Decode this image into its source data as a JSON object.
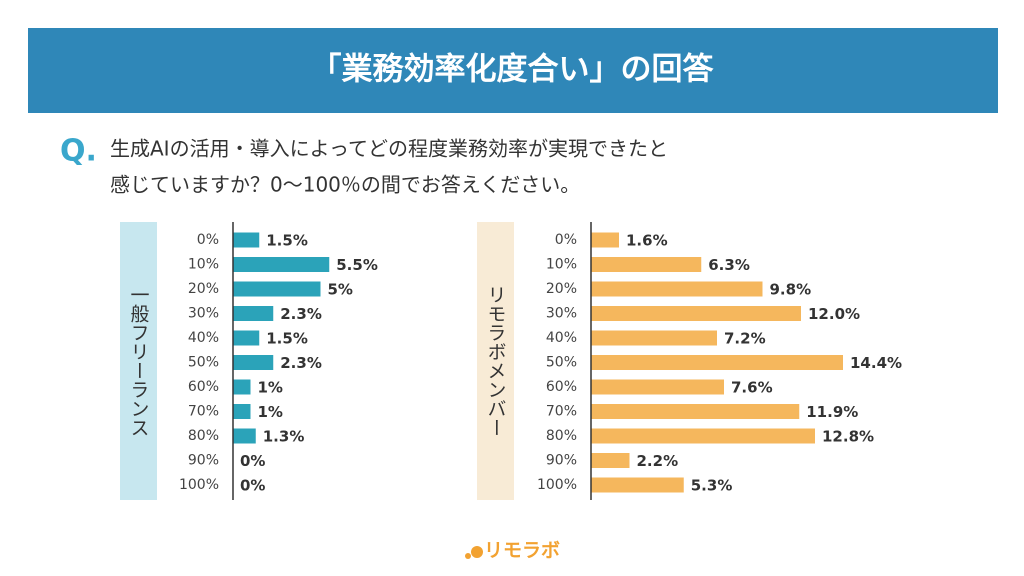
{
  "title": "「業務効率化度合い」の回答",
  "question": {
    "mark": "Q.",
    "lines": [
      "生成AIの活用・導入によってどの程度業務効率が実現できたと",
      "感じていますか？0〜100％の間でお答えください。"
    ]
  },
  "logo": "リモラボ",
  "chart_data": [
    {
      "type": "bar",
      "orientation": "horizontal",
      "categories": [
        "0%",
        "10%",
        "20%",
        "30%",
        "40%",
        "50%",
        "60%",
        "70%",
        "80%",
        "90%",
        "100%"
      ],
      "xlim": [
        0,
        20
      ],
      "series": [
        {
          "name": "一般フリーランス",
          "color": "#2ba3b9",
          "values": [
            1.5,
            5.5,
            5,
            2.3,
            1.5,
            2.3,
            1,
            1,
            1.3,
            0,
            0
          ],
          "value_labels": [
            "1.5%",
            "5.5%",
            "5%",
            "2.3%",
            "1.5%",
            "2.3%",
            "1%",
            "1%",
            "1.3%",
            "0%",
            "0%"
          ]
        }
      ]
    },
    {
      "type": "bar",
      "orientation": "horizontal",
      "categories": [
        "0%",
        "10%",
        "20%",
        "30%",
        "40%",
        "50%",
        "60%",
        "70%",
        "80%",
        "90%",
        "100%"
      ],
      "xlim": [
        0,
        20
      ],
      "series": [
        {
          "name": "リモラボメンバー",
          "color": "#f5b75d",
          "values": [
            1.6,
            6.3,
            9.8,
            12.0,
            7.2,
            14.4,
            7.6,
            11.9,
            12.8,
            2.2,
            5.3
          ],
          "value_labels": [
            "1.6%",
            "6.3%",
            "9.8%",
            "12.0%",
            "7.2%",
            "14.4%",
            "7.6%",
            "11.9%",
            "12.8%",
            "2.2%",
            "5.3%"
          ]
        }
      ]
    }
  ]
}
